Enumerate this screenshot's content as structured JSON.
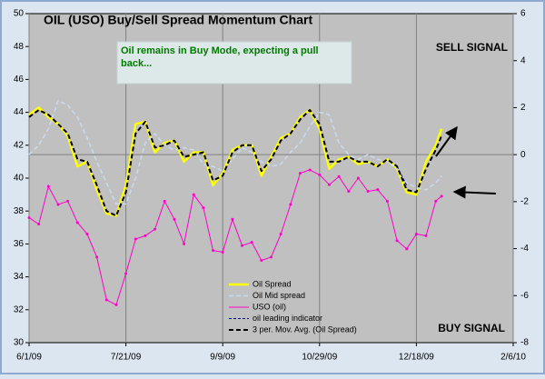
{
  "chart_data": {
    "type": "line",
    "title": "OIL (USO) Buy/Sell Spread Momentum Chart",
    "annotation": "Oil remains in Buy Mode, expecting a pull back...",
    "sell_label": "SELL SIGNAL",
    "buy_label": "BUY SIGNAL",
    "x": [
      "6/1/09",
      "6/6/09",
      "6/11/09",
      "6/16/09",
      "6/21/09",
      "6/26/09",
      "7/1/09",
      "7/6/09",
      "7/11/09",
      "7/16/09",
      "7/21/09",
      "7/26/09",
      "7/31/09",
      "8/5/09",
      "8/10/09",
      "8/15/09",
      "8/20/09",
      "8/25/09",
      "8/30/09",
      "9/4/09",
      "9/9/09",
      "9/14/09",
      "9/19/09",
      "9/24/09",
      "9/29/09",
      "10/4/09",
      "10/9/09",
      "10/14/09",
      "10/19/09",
      "10/24/09",
      "10/29/09",
      "11/3/09",
      "11/8/09",
      "11/13/09",
      "11/18/09",
      "11/23/09",
      "11/28/09",
      "12/3/09",
      "12/8/09",
      "12/13/09",
      "12/18/09",
      "12/23/09",
      "12/28/09",
      "12/31/09"
    ],
    "xlim": [
      "6/1/09",
      "2/6/10"
    ],
    "xticks": [
      "6/1/09",
      "7/21/09",
      "9/9/09",
      "10/29/09",
      "12/18/09",
      "2/6/10"
    ],
    "ylim": [
      30,
      50
    ],
    "yticks": [
      30,
      32,
      34,
      36,
      38,
      40,
      42,
      44,
      46,
      48,
      50
    ],
    "y2lim": [
      -8,
      6
    ],
    "y2ticks": [
      -8,
      -6,
      -4,
      -2,
      0,
      2,
      4,
      6
    ],
    "grid": "x",
    "legend": "bottom",
    "series": [
      {
        "name": "Oil Spread",
        "color": "#ffff00",
        "axis": "y2",
        "values": [
          1.7,
          2.0,
          1.6,
          1.3,
          0.8,
          -0.5,
          -0.3,
          -1.5,
          -2.5,
          -2.6,
          -1.3,
          1.3,
          1.4,
          0.1,
          0.5,
          0.6,
          -0.3,
          0.1,
          0.1,
          -1.3,
          -0.8,
          0.2,
          0.4,
          0.4,
          -0.9,
          -0.1,
          0.7,
          0.9,
          1.6,
          1.9,
          1.1,
          -0.6,
          -0.2,
          -0.1,
          -0.4,
          -0.3,
          -0.5,
          -0.2,
          -0.6,
          -1.6,
          -1.7,
          -0.3,
          0.4,
          1.1
        ]
      },
      {
        "name": "Oil Mid spread",
        "color": "#c8dcf0",
        "axis": "y2",
        "values": [
          0.0,
          0.4,
          1.1,
          2.3,
          2.1,
          1.6,
          0.7,
          -0.3,
          -1.2,
          -2.1,
          -2.1,
          -1.0,
          0.5,
          0.9,
          0.4,
          0.2,
          0.3,
          0.2,
          -0.4,
          -0.5,
          -0.7,
          -0.2,
          0.3,
          0.1,
          -0.3,
          -0.5,
          -0.4,
          0.1,
          0.5,
          1.2,
          1.8,
          1.7,
          0.5,
          0.0,
          -0.2,
          0.0,
          -0.2,
          -0.3,
          -0.6,
          -1.2,
          -1.4,
          -1.5,
          -1.2,
          -0.9
        ]
      },
      {
        "name": "USO (oil)",
        "color": "#ff00cc",
        "axis": "y",
        "values": [
          37.6,
          37.2,
          39.5,
          38.4,
          38.6,
          37.3,
          36.6,
          35.2,
          32.6,
          32.3,
          34.2,
          36.3,
          36.5,
          36.9,
          38.6,
          37.5,
          36.0,
          39.0,
          38.2,
          35.6,
          35.5,
          37.5,
          35.9,
          36.1,
          35.0,
          35.2,
          36.6,
          38.4,
          40.3,
          40.5,
          40.2,
          39.6,
          40.1,
          39.2,
          40.0,
          39.2,
          39.3,
          38.6,
          36.2,
          35.7,
          36.6,
          36.5,
          38.6,
          38.9
        ]
      },
      {
        "name": "oil leading indicator",
        "color": "#000080",
        "axis": "y2",
        "values": [
          null,
          null,
          null,
          null,
          null,
          null,
          null,
          null,
          null,
          null,
          null,
          null,
          null,
          null,
          null,
          null,
          null,
          null,
          null,
          null,
          null,
          null,
          null,
          null,
          null,
          null,
          null,
          null,
          null,
          null,
          null,
          null,
          null,
          null,
          null,
          null,
          null,
          null,
          -0.5,
          -1.3,
          null,
          null,
          null,
          null
        ]
      },
      {
        "name": "3 per. Mov. Avg. (Oil Spread)",
        "color": "#000000",
        "axis": "y2",
        "values": [
          1.6,
          1.9,
          1.7,
          1.3,
          0.9,
          -0.2,
          -0.3,
          -1.3,
          -2.4,
          -2.6,
          -1.6,
          0.9,
          1.4,
          0.3,
          0.4,
          0.6,
          -0.1,
          0.0,
          0.1,
          -1.1,
          -0.9,
          0.1,
          0.4,
          0.4,
          -0.7,
          -0.2,
          0.6,
          0.9,
          1.5,
          1.9,
          1.3,
          -0.3,
          -0.3,
          -0.1,
          -0.3,
          -0.3,
          -0.5,
          -0.2,
          -0.5,
          -1.5,
          -1.6,
          -0.6,
          0.2,
          0.8
        ]
      }
    ]
  }
}
